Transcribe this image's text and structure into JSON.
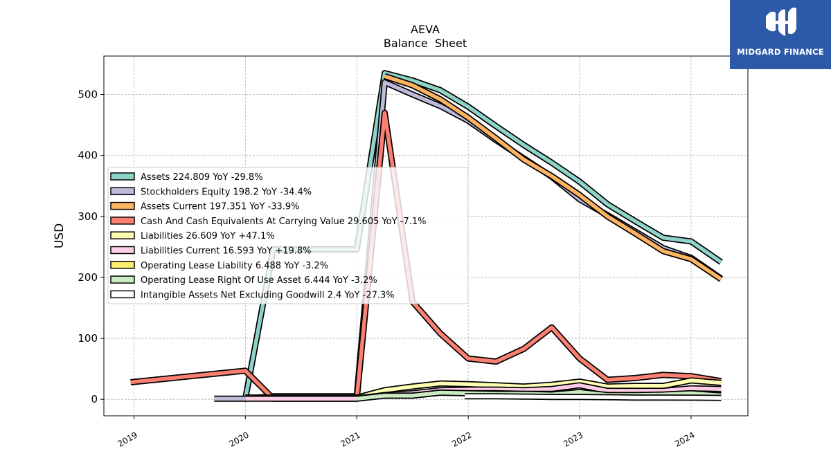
{
  "chart_data": {
    "type": "line",
    "title": "AEVA",
    "subtitle": "Balance  Sheet",
    "ylabel": "USD",
    "xlabel": "",
    "ylim": [
      -27,
      563
    ],
    "xlim": [
      2018.73,
      2024.51
    ],
    "yticks": [
      0,
      100,
      200,
      300,
      400,
      500
    ],
    "xticks": [
      "2019",
      "2020",
      "2021",
      "2022",
      "2023",
      "2024"
    ],
    "grid": true,
    "legend_position": "center-left",
    "series": [
      {
        "name": "Assets",
        "legend_label": "Assets  224.809 YoY -29.8%",
        "color": "#8dd3c7",
        "points": [
          [
            2020.0,
            1
          ],
          [
            2020.25,
            246
          ],
          [
            2021.0,
            246
          ],
          [
            2021.25,
            535
          ],
          [
            2021.5,
            523
          ],
          [
            2021.75,
            507
          ],
          [
            2022.0,
            480
          ],
          [
            2022.25,
            448
          ],
          [
            2022.5,
            417
          ],
          [
            2022.75,
            388
          ],
          [
            2023.0,
            357
          ],
          [
            2023.25,
            320
          ],
          [
            2023.5,
            292
          ],
          [
            2023.75,
            265
          ],
          [
            2024.0,
            259
          ],
          [
            2024.27,
            225
          ]
        ]
      },
      {
        "name": "Stockholders Equity",
        "legend_label": "Stockholders Equity  198.2 YoY -34.4%",
        "color": "#bebada",
        "points": [
          [
            2019.72,
            1
          ],
          [
            2020.0,
            1
          ],
          [
            2020.25,
            5
          ],
          [
            2021.0,
            5
          ],
          [
            2021.25,
            520
          ],
          [
            2021.5,
            500
          ],
          [
            2021.75,
            481
          ],
          [
            2022.0,
            457
          ],
          [
            2022.25,
            425
          ],
          [
            2022.5,
            395
          ],
          [
            2022.75,
            365
          ],
          [
            2023.0,
            328
          ],
          [
            2023.25,
            302
          ],
          [
            2023.5,
            275
          ],
          [
            2023.75,
            248
          ],
          [
            2024.0,
            232
          ],
          [
            2024.27,
            198
          ]
        ]
      },
      {
        "name": "Assets Current",
        "legend_label": "Assets Current  197.351 YoY -33.9%",
        "color": "#fdb462",
        "points": [
          [
            2021.25,
            530
          ],
          [
            2021.5,
            515
          ],
          [
            2021.75,
            492
          ],
          [
            2022.0,
            462
          ],
          [
            2022.25,
            428
          ],
          [
            2022.5,
            393
          ],
          [
            2022.75,
            366
          ],
          [
            2023.0,
            335
          ],
          [
            2023.25,
            300
          ],
          [
            2023.5,
            272
          ],
          [
            2023.75,
            243
          ],
          [
            2024.0,
            230
          ],
          [
            2024.27,
            197
          ]
        ]
      },
      {
        "name": "Cash And Cash Equivalents At Carrying Value",
        "legend_label": "Cash And Cash Equivalents At Carrying Value  29.605 YoY -7.1%",
        "color": "#fb8072",
        "points": [
          [
            2018.97,
            28
          ],
          [
            2020.0,
            47
          ],
          [
            2020.25,
            1
          ],
          [
            2021.0,
            1
          ],
          [
            2021.25,
            470
          ],
          [
            2021.5,
            160
          ],
          [
            2021.75,
            108
          ],
          [
            2022.0,
            67
          ],
          [
            2022.25,
            62
          ],
          [
            2022.5,
            83
          ],
          [
            2022.75,
            118
          ],
          [
            2023.0,
            67
          ],
          [
            2023.25,
            32
          ],
          [
            2023.5,
            35
          ],
          [
            2023.75,
            40
          ],
          [
            2024.0,
            38
          ],
          [
            2024.27,
            30
          ]
        ]
      },
      {
        "name": "Liabilities",
        "legend_label": "Liabilities  26.609 YoY +47.1%",
        "color": "#ffffb3",
        "points": [
          [
            2020.0,
            3
          ],
          [
            2021.0,
            3
          ],
          [
            2021.25,
            15
          ],
          [
            2021.5,
            21
          ],
          [
            2021.75,
            26
          ],
          [
            2022.0,
            25
          ],
          [
            2022.25,
            23
          ],
          [
            2022.5,
            21
          ],
          [
            2022.75,
            24
          ],
          [
            2023.0,
            29
          ],
          [
            2023.25,
            21
          ],
          [
            2023.5,
            22
          ],
          [
            2023.75,
            22
          ],
          [
            2024.0,
            31
          ],
          [
            2024.27,
            27
          ]
        ]
      },
      {
        "name": "Liabilities Current",
        "legend_label": "Liabilities Current  16.593 YoY +19.8%",
        "color": "#fccde5",
        "points": [
          [
            2020.0,
            1
          ],
          [
            2021.0,
            1
          ],
          [
            2021.25,
            7
          ],
          [
            2021.5,
            10
          ],
          [
            2021.75,
            15
          ],
          [
            2022.0,
            16
          ],
          [
            2022.25,
            16
          ],
          [
            2022.5,
            15
          ],
          [
            2022.75,
            17
          ],
          [
            2023.0,
            23
          ],
          [
            2023.25,
            14
          ],
          [
            2023.5,
            14
          ],
          [
            2023.75,
            14
          ],
          [
            2024.0,
            18
          ],
          [
            2024.27,
            17
          ]
        ]
      },
      {
        "name": "Operating Lease Liability",
        "legend_label": "Operating Lease Liability  6.488 YoY -3.2%",
        "color": "#ffed6f",
        "points": [
          [
            2021.0,
            2
          ],
          [
            2021.25,
            6
          ],
          [
            2021.5,
            6
          ],
          [
            2021.75,
            11
          ],
          [
            2022.0,
            10
          ],
          [
            2022.25,
            10
          ],
          [
            2022.5,
            9
          ],
          [
            2022.75,
            9
          ],
          [
            2023.0,
            8
          ],
          [
            2023.25,
            7
          ],
          [
            2023.5,
            7
          ],
          [
            2023.75,
            7
          ],
          [
            2024.0,
            7
          ],
          [
            2024.27,
            6.5
          ]
        ]
      },
      {
        "name": "Operating Lease Right Of Use Asset",
        "legend_label": "Operating Lease Right Of Use Asset  6.444 YoY -3.2%",
        "color": "#ccebc5",
        "points": [
          [
            2021.0,
            1
          ],
          [
            2021.25,
            6
          ],
          [
            2021.5,
            6
          ],
          [
            2021.75,
            11
          ],
          [
            2022.0,
            10
          ],
          [
            2022.25,
            9
          ],
          [
            2022.5,
            9
          ],
          [
            2022.75,
            8
          ],
          [
            2023.0,
            12
          ],
          [
            2023.25,
            7
          ],
          [
            2023.5,
            7
          ],
          [
            2023.75,
            8
          ],
          [
            2024.0,
            10
          ],
          [
            2024.27,
            6.4
          ]
        ]
      },
      {
        "name": "Intangible Assets Net Excluding Goodwill",
        "legend_label": "Intangible Assets Net Excluding Goodwill  2.4 YoY -27.3%",
        "color": "#ffffff",
        "points": [
          [
            2021.97,
            5
          ],
          [
            2022.25,
            5
          ],
          [
            2022.5,
            4.5
          ],
          [
            2022.75,
            4
          ],
          [
            2023.0,
            4
          ],
          [
            2023.25,
            3.5
          ],
          [
            2023.5,
            3
          ],
          [
            2023.75,
            3
          ],
          [
            2024.0,
            2.7
          ],
          [
            2024.27,
            2.4
          ]
        ]
      }
    ]
  },
  "logo": {
    "text": "MIDGARD FINANCE"
  }
}
